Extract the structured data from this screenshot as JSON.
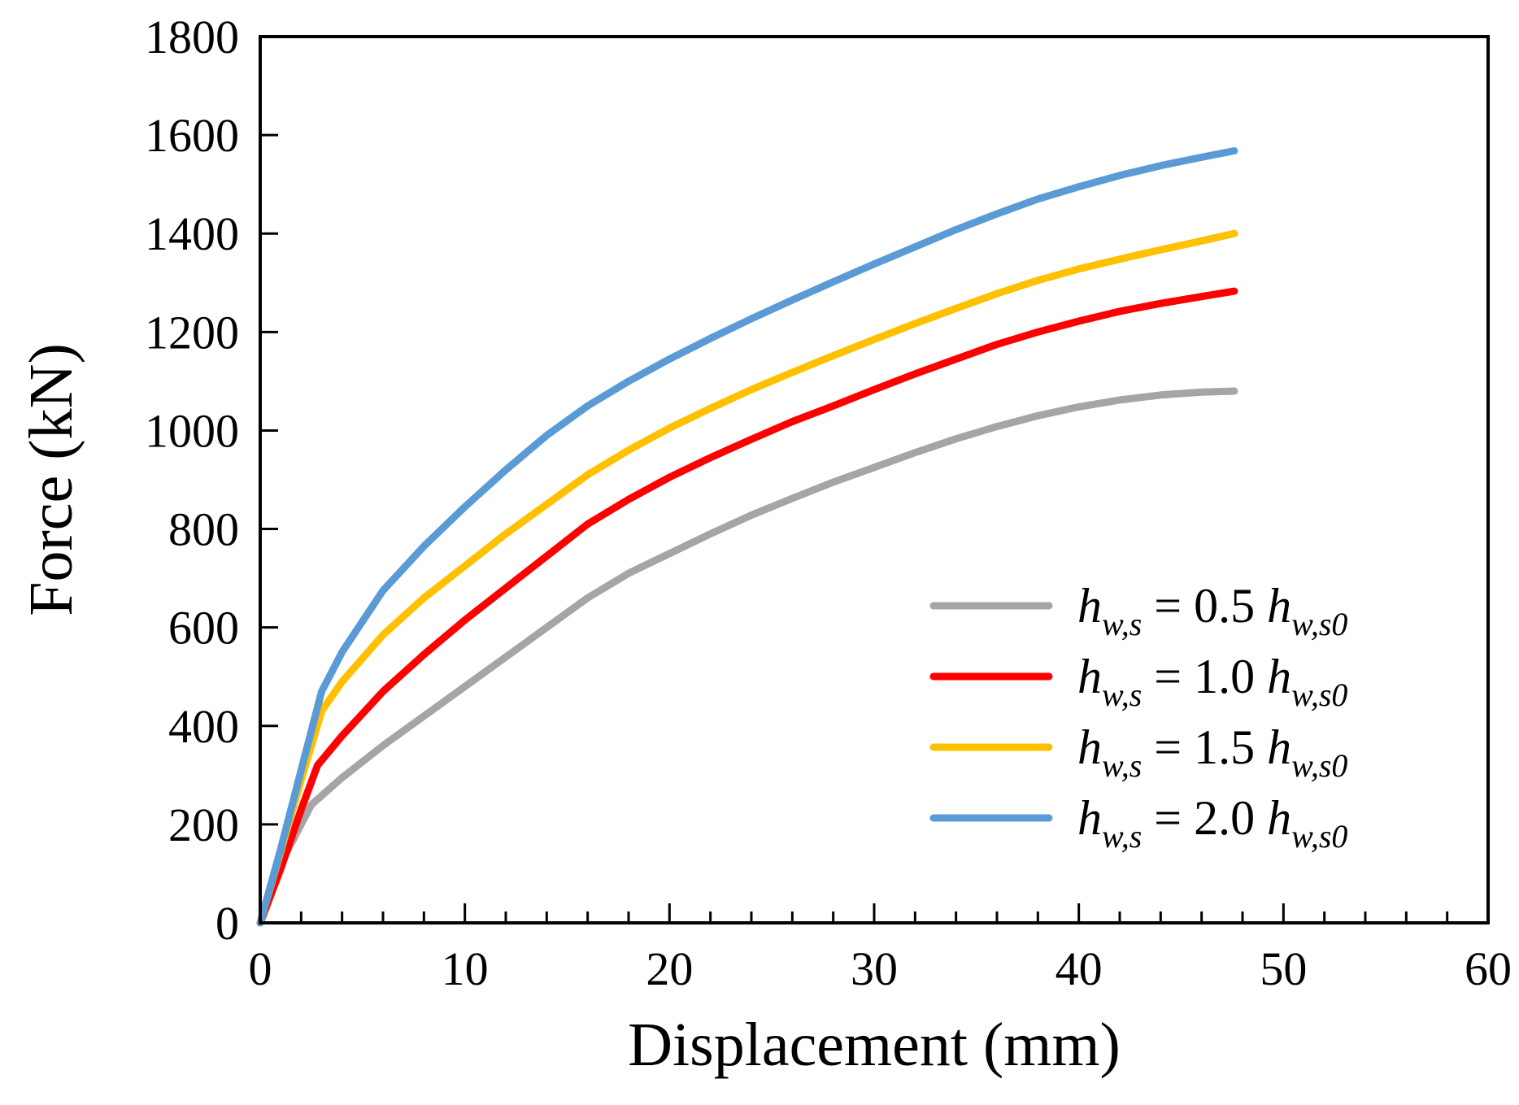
{
  "chart_data": {
    "type": "line",
    "title": "",
    "xlabel": "Displacement (mm)",
    "ylabel": "Force (kN)",
    "xlim": [
      0,
      60
    ],
    "ylim": [
      0,
      1800
    ],
    "xticks": [
      0,
      10,
      20,
      30,
      40,
      50,
      60
    ],
    "yticks": [
      0,
      200,
      400,
      600,
      800,
      1000,
      1200,
      1400,
      1600,
      1800
    ],
    "x_minor_step": 2,
    "grid": false,
    "legend_position": "bottom-right",
    "series": [
      {
        "name": "h_w,s = 0.5 h_w,s0",
        "label": {
          "h": "h",
          "sub": "w,s",
          "eq": "= 0.5",
          "h2": "h",
          "sub2": "w,s0"
        },
        "color": "#a5a5a5",
        "x": [
          0,
          1,
          2.5,
          4,
          6,
          8,
          10,
          12,
          14,
          16,
          18,
          20,
          22,
          24,
          26,
          28,
          30,
          32,
          34,
          36,
          38,
          40,
          42,
          44,
          46,
          47.6
        ],
        "y": [
          0,
          120,
          240,
          295,
          360,
          420,
          480,
          540,
          600,
          660,
          710,
          750,
          790,
          828,
          862,
          895,
          925,
          955,
          983,
          1008,
          1030,
          1048,
          1062,
          1072,
          1078,
          1080
        ]
      },
      {
        "name": "h_w,s = 1.0 h_w,s0",
        "label": {
          "h": "h",
          "sub": "w,s",
          "eq": "= 1.0",
          "h2": "h",
          "sub2": "w,s0"
        },
        "color": "#ff0000",
        "x": [
          0,
          1,
          2,
          2.8,
          4,
          6,
          8,
          10,
          12,
          14,
          16,
          18,
          20,
          22,
          24,
          26,
          28,
          30,
          32,
          34,
          36,
          38,
          40,
          42,
          44,
          46,
          47.6
        ],
        "y": [
          0,
          110,
          230,
          320,
          380,
          470,
          545,
          615,
          680,
          745,
          810,
          860,
          905,
          945,
          982,
          1018,
          1050,
          1083,
          1115,
          1145,
          1175,
          1200,
          1222,
          1242,
          1258,
          1272,
          1283
        ]
      },
      {
        "name": "h_w,s = 1.5 h_w,s0",
        "label": {
          "h": "h",
          "sub": "w,s",
          "eq": "= 1.5",
          "h2": "h",
          "sub2": "w,s0"
        },
        "color": "#ffc000",
        "x": [
          0,
          1,
          2,
          3,
          4,
          6,
          8,
          10,
          12,
          14,
          16,
          18,
          20,
          22,
          24,
          26,
          28,
          30,
          32,
          34,
          36,
          38,
          40,
          42,
          44,
          46,
          47.6
        ],
        "y": [
          0,
          145,
          290,
          430,
          490,
          585,
          660,
          725,
          790,
          850,
          910,
          960,
          1005,
          1045,
          1083,
          1118,
          1152,
          1185,
          1217,
          1248,
          1278,
          1305,
          1328,
          1348,
          1367,
          1385,
          1400
        ]
      },
      {
        "name": "h_w,s = 2.0 h_w,s0",
        "label": {
          "h": "h",
          "sub": "w,s",
          "eq": "= 2.0",
          "h2": "h",
          "sub2": "w,s0"
        },
        "color": "#5b9bd5",
        "x": [
          0,
          1,
          2,
          3,
          4,
          6,
          8,
          10,
          12,
          14,
          16,
          18,
          20,
          22,
          24,
          26,
          28,
          30,
          32,
          34,
          36,
          38,
          40,
          42,
          44,
          46,
          47.6
        ],
        "y": [
          0,
          150,
          310,
          470,
          550,
          675,
          765,
          845,
          920,
          990,
          1050,
          1100,
          1145,
          1187,
          1227,
          1265,
          1302,
          1338,
          1373,
          1408,
          1440,
          1470,
          1495,
          1518,
          1538,
          1555,
          1568
        ]
      }
    ]
  }
}
